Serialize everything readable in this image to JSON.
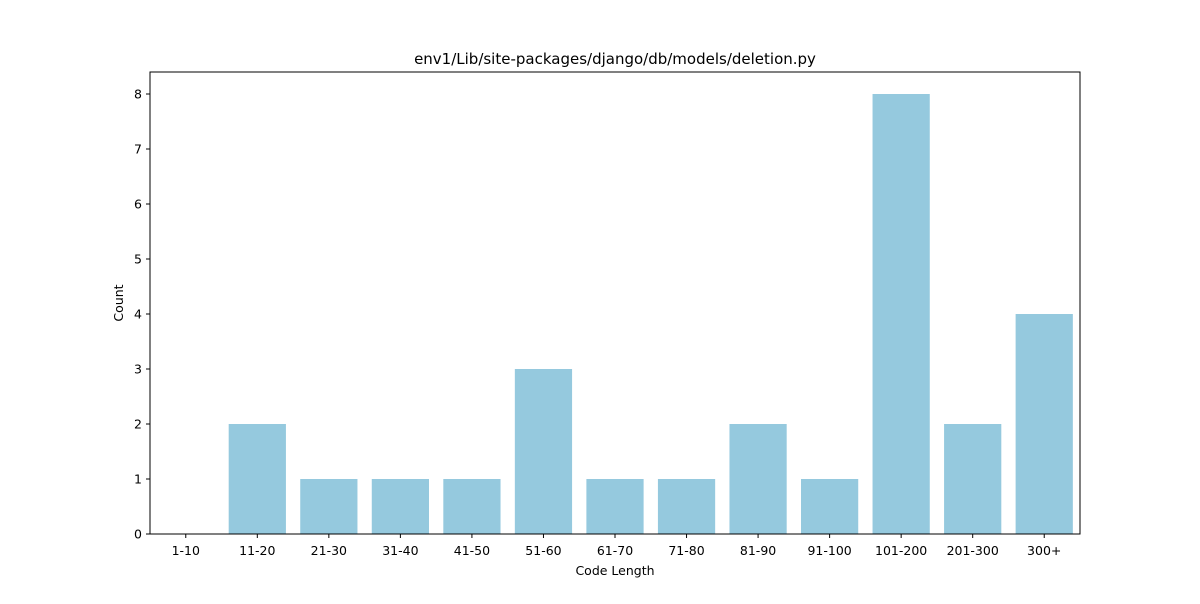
{
  "chart_data": {
    "type": "bar",
    "title": "env1/Lib/site-packages/django/db/models/deletion.py",
    "xlabel": "Code Length",
    "ylabel": "Count",
    "categories": [
      "1-10",
      "11-20",
      "21-30",
      "31-40",
      "41-50",
      "51-60",
      "61-70",
      "71-80",
      "81-90",
      "91-100",
      "101-200",
      "201-300",
      "300+"
    ],
    "values": [
      0,
      2,
      1,
      1,
      1,
      3,
      1,
      1,
      2,
      1,
      8,
      2,
      4
    ],
    "yticks": [
      0,
      1,
      2,
      3,
      4,
      5,
      6,
      7,
      8
    ],
    "ylim": [
      0,
      8.4
    ],
    "bar_color": "#95c9de",
    "grid": false,
    "legend": "none"
  }
}
